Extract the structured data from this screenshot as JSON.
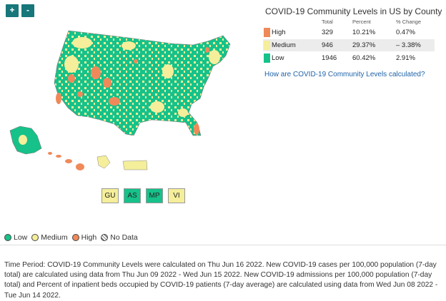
{
  "zoom": {
    "in_label": "+",
    "out_label": "-"
  },
  "colors": {
    "low": "#16c28a",
    "medium": "#f5ee9a",
    "high": "#f0895a",
    "link": "#1f63a8",
    "accent": "#17777a"
  },
  "stats": {
    "title": "COVID-19 Community Levels in US by County",
    "headers": {
      "total": "Total",
      "percent": "Percent",
      "change": "% Change"
    },
    "rows": [
      {
        "level": "High",
        "total": "329",
        "percent": "10.21%",
        "change": "0.47%"
      },
      {
        "level": "Medium",
        "total": "946",
        "percent": "29.37%",
        "change": "– 3.38%"
      },
      {
        "level": "Low",
        "total": "1946",
        "percent": "60.42%",
        "change": "2.91%"
      }
    ],
    "link_text": "How are COVID-19 Community Levels calculated?"
  },
  "territories": [
    "GU",
    "AS",
    "MP",
    "VI"
  ],
  "legend": {
    "low": "Low",
    "medium": "Medium",
    "high": "High",
    "nodata": "No Data"
  },
  "time_period": "Time Period: COVID-19 Community Levels were calculated on Thu Jun 16 2022. New COVID-19 cases per 100,000 population (7-day total) are calculated using data from Thu Jun 09 2022 - Wed Jun 15 2022. New COVID-19 admissions per 100,000 population (7-day total) and Percent of inpatient beds occupied by COVID-19 patients (7-day average) are calculated using data from Wed Jun 08 2022 - Tue Jun 14 2022."
}
